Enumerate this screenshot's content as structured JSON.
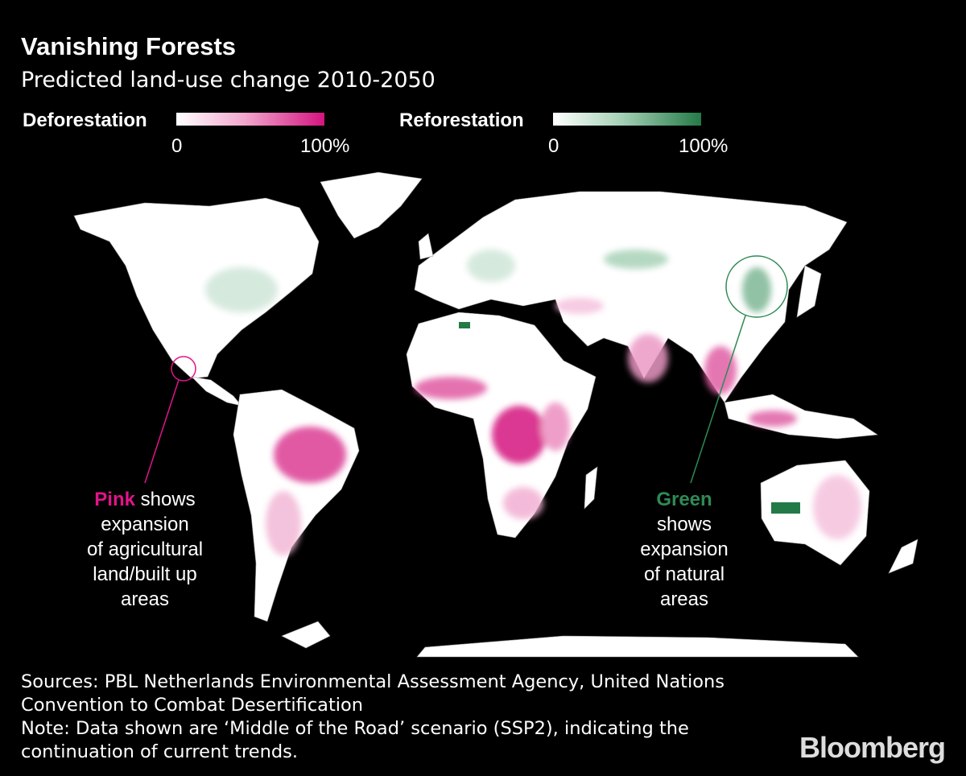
{
  "title": "Vanishing Forests",
  "subtitle": "Predicted land-use change 2010-2050",
  "legend": {
    "deforestation": {
      "label": "Deforestation",
      "min": "0",
      "max": "100%",
      "color_low": "#ffffff",
      "color_high": "#d4147f"
    },
    "reforestation": {
      "label": "Reforestation",
      "min": "0",
      "max": "100%",
      "color_low": "#ffffff",
      "color_high": "#237a47"
    }
  },
  "annotations": {
    "pink": {
      "highlight": "Pink",
      "rest": " shows",
      "lines": [
        "expansion",
        "of agricultural",
        "land/built up",
        "areas"
      ],
      "color": "#e0148a"
    },
    "green": {
      "highlight": "Green",
      "lines": [
        "shows",
        "expansion",
        "of natural",
        "areas"
      ],
      "color": "#2e8a55"
    }
  },
  "footer": {
    "sources": "Sources: PBL Netherlands Environmental Assessment Agency, United Nations Convention to Combat Desertification",
    "note": "Note: Data shown are ‘Middle of the Road’ scenario (SSP2), indicating the continuation of current trends."
  },
  "logo": "Bloomberg"
}
